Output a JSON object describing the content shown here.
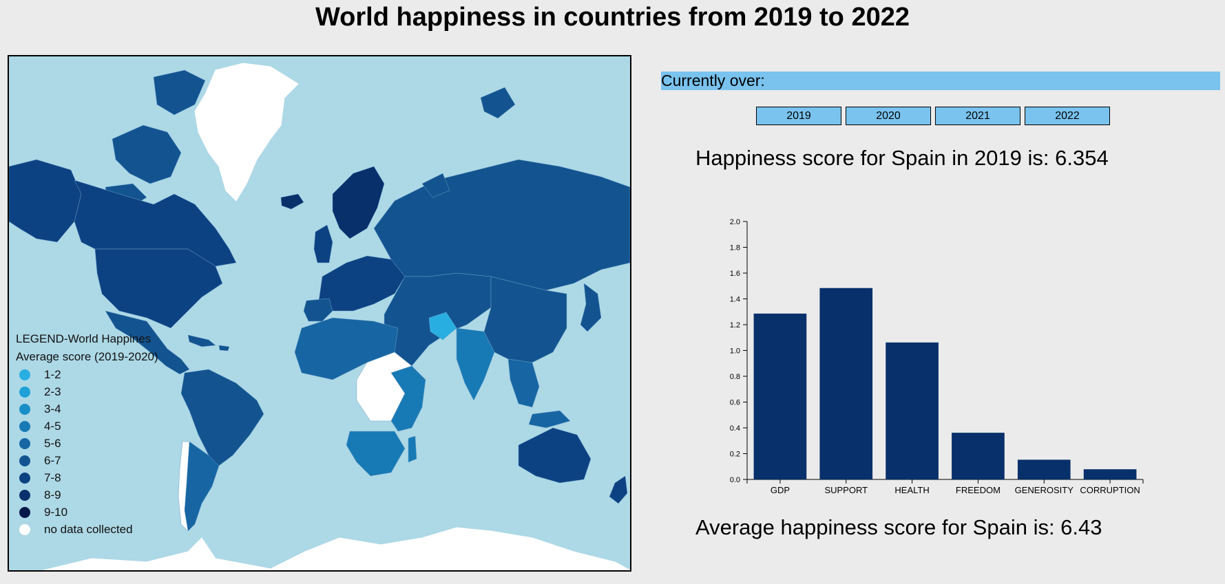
{
  "title": "World happiness in countries from 2019 to 2022",
  "map": {
    "background_color": "#add8e6",
    "no_data_color": "#ffffff",
    "highlighted_country": "Spain"
  },
  "legend": {
    "title_line1": "LEGEND-World Happines",
    "title_line2": "Average score (2019-2020)",
    "items": [
      {
        "label": "1-2",
        "color": "#29aee2"
      },
      {
        "label": "2-3",
        "color": "#1fa1d8"
      },
      {
        "label": "3-4",
        "color": "#1a8ec6"
      },
      {
        "label": "4-5",
        "color": "#187ab5"
      },
      {
        "label": "5-6",
        "color": "#1766a3"
      },
      {
        "label": "6-7",
        "color": "#135490"
      },
      {
        "label": "7-8",
        "color": "#0d4282"
      },
      {
        "label": "8-9",
        "color": "#08306b"
      },
      {
        "label": "9-10",
        "color": "#06174a"
      },
      {
        "label": "no data collected",
        "color": "#ffffff"
      }
    ]
  },
  "hover": {
    "label": "Currently over:",
    "country": ""
  },
  "year_buttons": [
    "2019",
    "2020",
    "2021",
    "2022"
  ],
  "score_text": "Happiness score for Spain in 2019 is: 6.354",
  "average_text": "Average happiness score for Spain is: 6.43",
  "chart_data": {
    "type": "bar",
    "categories": [
      "GDP",
      "SUPPORT",
      "HEALTH",
      "FREEDOM",
      "GENEROSITY",
      "CORRUPTION"
    ],
    "values": [
      1.286,
      1.484,
      1.062,
      0.362,
      0.153,
      0.079
    ],
    "ylim": [
      0,
      2.0
    ],
    "yticks": [
      0.0,
      0.2,
      0.4,
      0.6,
      0.8,
      1.0,
      1.2,
      1.4,
      1.6,
      1.8,
      2.0
    ],
    "bar_color": "#08306b",
    "grid": false
  }
}
